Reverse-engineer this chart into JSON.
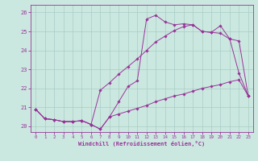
{
  "xlabel": "Windchill (Refroidissement éolien,°C)",
  "bg_color": "#cbe8e0",
  "grid_color": "#a8ccc4",
  "line_color": "#993399",
  "xlim": [
    -0.5,
    23.5
  ],
  "ylim": [
    19.7,
    26.4
  ],
  "yticks": [
    20,
    21,
    22,
    23,
    24,
    25,
    26
  ],
  "xticks": [
    0,
    1,
    2,
    3,
    4,
    5,
    6,
    7,
    8,
    9,
    10,
    11,
    12,
    13,
    14,
    15,
    16,
    17,
    18,
    19,
    20,
    21,
    22,
    23
  ],
  "line1_x": [
    0,
    1,
    2,
    3,
    4,
    5,
    6,
    7,
    8,
    9,
    10,
    11,
    12,
    13,
    14,
    15,
    16,
    17,
    18,
    19,
    20,
    21,
    22,
    23
  ],
  "line1_y": [
    20.9,
    20.4,
    20.35,
    20.25,
    20.25,
    20.3,
    20.1,
    19.85,
    20.5,
    21.3,
    22.1,
    22.4,
    25.65,
    25.85,
    25.5,
    25.35,
    25.4,
    25.35,
    25.0,
    24.95,
    25.3,
    24.6,
    22.8,
    21.6
  ],
  "line2_x": [
    0,
    1,
    2,
    3,
    4,
    5,
    6,
    7,
    8,
    9,
    10,
    11,
    12,
    13,
    14,
    15,
    16,
    17,
    18,
    19,
    20,
    21,
    22,
    23
  ],
  "line2_y": [
    20.9,
    20.4,
    20.35,
    20.25,
    20.25,
    20.3,
    20.1,
    21.9,
    22.3,
    22.75,
    23.15,
    23.55,
    24.0,
    24.45,
    24.75,
    25.05,
    25.25,
    25.35,
    25.0,
    24.95,
    24.9,
    24.6,
    24.5,
    21.6
  ],
  "line3_x": [
    0,
    1,
    2,
    3,
    4,
    5,
    6,
    7,
    8,
    9,
    10,
    11,
    12,
    13,
    14,
    15,
    16,
    17,
    18,
    19,
    20,
    21,
    22,
    23
  ],
  "line3_y": [
    20.9,
    20.4,
    20.35,
    20.25,
    20.25,
    20.3,
    20.1,
    19.85,
    20.5,
    20.65,
    20.8,
    20.95,
    21.1,
    21.3,
    21.45,
    21.6,
    21.7,
    21.85,
    22.0,
    22.1,
    22.2,
    22.35,
    22.45,
    21.6
  ]
}
